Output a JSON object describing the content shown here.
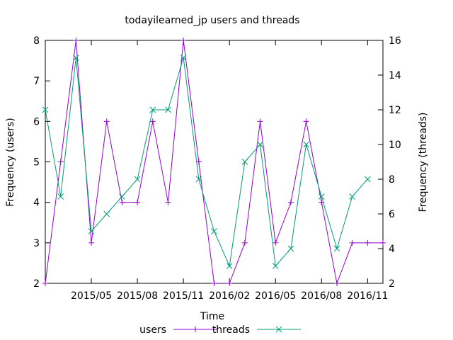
{
  "chart_data": {
    "type": "line",
    "title": "todayilearned_jp users and threads",
    "xlabel": "Time",
    "ylabel_left": "Frequency (users)",
    "ylabel_right": "Frequency (threads)",
    "ylim_left": [
      2,
      8
    ],
    "ylim_right": [
      2,
      16
    ],
    "yticks_left": [
      2,
      3,
      4,
      5,
      6,
      7,
      8
    ],
    "yticks_right": [
      2,
      4,
      6,
      8,
      10,
      12,
      14,
      16
    ],
    "xtick_labels": [
      "2015/05",
      "2015/08",
      "2015/11",
      "2016/02",
      "2016/05",
      "2016/08",
      "2016/11"
    ],
    "x": [
      "2015/02",
      "2015/03",
      "2015/04",
      "2015/05",
      "2015/06",
      "2015/07",
      "2015/08",
      "2015/09",
      "2015/10",
      "2015/11",
      "2015/12",
      "2016/01",
      "2016/02",
      "2016/03",
      "2016/04",
      "2016/05",
      "2016/06",
      "2016/07",
      "2016/08",
      "2016/09",
      "2016/10",
      "2016/11",
      "2016/12"
    ],
    "grid": false,
    "legend_position": "bottom",
    "series": [
      {
        "name": "users",
        "axis": "left",
        "color": "#9400d3",
        "marker": "plus",
        "values": [
          2,
          5,
          8,
          3,
          6,
          4,
          4,
          6,
          4,
          8,
          5,
          2,
          2,
          3,
          6,
          3,
          4,
          6,
          4,
          2,
          3,
          3,
          3
        ]
      },
      {
        "name": "threads",
        "axis": "right",
        "color": "#009e73",
        "marker": "x",
        "values": [
          12,
          7,
          15,
          5,
          6,
          7,
          8,
          12,
          12,
          15,
          8,
          5,
          3,
          9,
          10,
          3,
          4,
          10,
          7,
          4,
          7,
          8,
          null
        ]
      }
    ]
  }
}
